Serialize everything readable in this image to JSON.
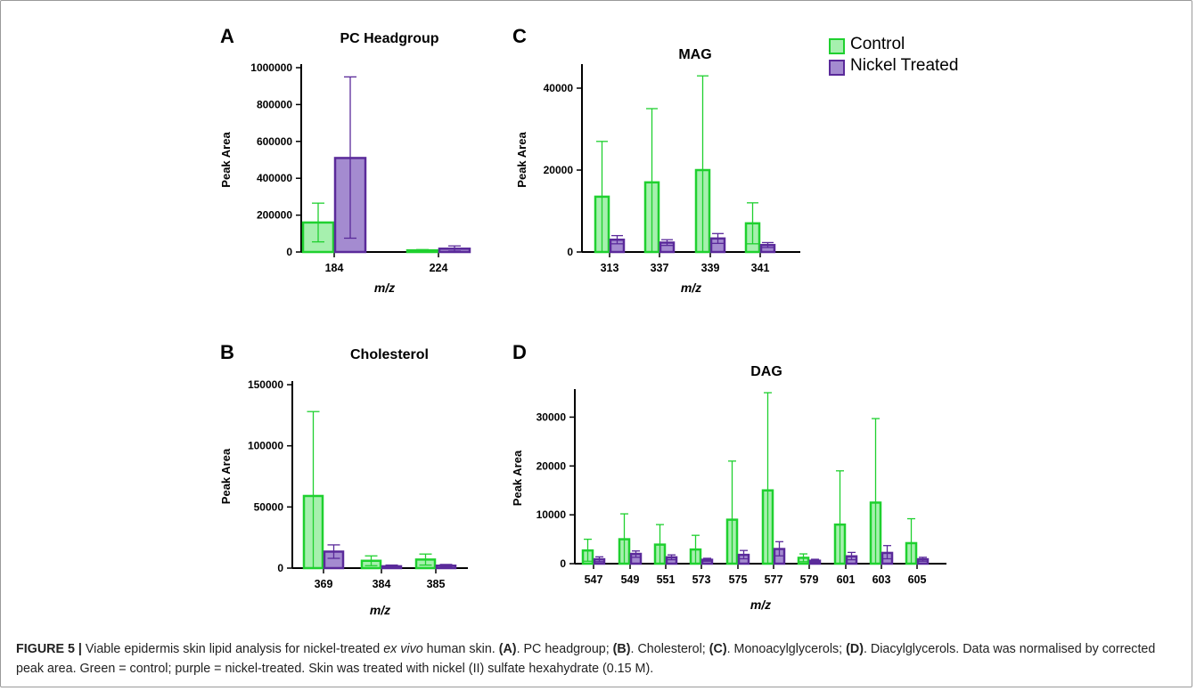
{
  "colors": {
    "control_fill": "#a6f0ae",
    "control_stroke": "#1fd02f",
    "nickel_fill": "#a48bd0",
    "nickel_stroke": "#5a2a9a"
  },
  "legend": {
    "control": "Control",
    "nickel": "Nickel Treated"
  },
  "chart_data": [
    {
      "panel": "A",
      "type": "bar",
      "title": "PC Headgroup",
      "xlabel": "m/z",
      "ylabel": "Peak Area",
      "ylim": [
        0,
        1000000
      ],
      "yticks": [
        "0",
        "200000",
        "400000",
        "600000",
        "800000",
        "1000000"
      ],
      "categories": [
        "184",
        "224"
      ],
      "series": [
        {
          "name": "Control",
          "values": [
            160000,
            9000
          ],
          "error_upper": [
            265000,
            13000
          ],
          "error_lower": [
            55000,
            5000
          ]
        },
        {
          "name": "Nickel Treated",
          "values": [
            510000,
            18000
          ],
          "error_upper": [
            950000,
            33000
          ],
          "error_lower": [
            75000,
            5000
          ]
        }
      ]
    },
    {
      "panel": "B",
      "type": "bar",
      "title": "Cholesterol",
      "xlabel": "m/z",
      "ylabel": "Peak Area",
      "ylim": [
        0,
        150000
      ],
      "yticks": [
        "0",
        "50000",
        "100000",
        "150000"
      ],
      "categories": [
        "369",
        "384",
        "385"
      ],
      "series": [
        {
          "name": "Control",
          "values": [
            59000,
            6000,
            7000
          ],
          "error_upper": [
            128000,
            10000,
            11500
          ],
          "error_lower": [
            0,
            2000,
            2500
          ]
        },
        {
          "name": "Nickel Treated",
          "values": [
            13500,
            1500,
            2000
          ],
          "error_upper": [
            19000,
            2500,
            3000
          ],
          "error_lower": [
            8000,
            500,
            1000
          ]
        }
      ]
    },
    {
      "panel": "C",
      "type": "bar",
      "title": "MAG",
      "xlabel": "m/z",
      "ylabel": "Peak Area",
      "ylim": [
        0,
        45000
      ],
      "yticks": [
        "0",
        "20000",
        "40000"
      ],
      "categories": [
        "313",
        "337",
        "339",
        "341"
      ],
      "series": [
        {
          "name": "Control",
          "values": [
            13500,
            17000,
            20000,
            7000
          ],
          "error_upper": [
            27000,
            35000,
            43000,
            12000
          ],
          "error_lower": [
            0,
            0,
            0,
            2000
          ]
        },
        {
          "name": "Nickel Treated",
          "values": [
            3000,
            2300,
            3300,
            1700
          ],
          "error_upper": [
            4000,
            3000,
            4500,
            2300
          ],
          "error_lower": [
            2000,
            1600,
            2100,
            1100
          ]
        }
      ]
    },
    {
      "panel": "D",
      "type": "bar",
      "title": "DAG",
      "xlabel": "m/z",
      "ylabel": "Peak Area",
      "ylim": [
        0,
        35000
      ],
      "yticks": [
        "0",
        "10000",
        "20000",
        "30000"
      ],
      "categories": [
        "547",
        "549",
        "551",
        "573",
        "575",
        "577",
        "579",
        "601",
        "603",
        "605"
      ],
      "series": [
        {
          "name": "Control",
          "values": [
            2700,
            5000,
            3900,
            2900,
            9000,
            15000,
            1200,
            8000,
            12500,
            4200
          ],
          "error_upper": [
            5000,
            10200,
            8000,
            5800,
            21000,
            35000,
            2000,
            19000,
            29700,
            9200
          ],
          "error_lower": [
            500,
            0,
            0,
            0,
            0,
            0,
            400,
            0,
            0,
            0
          ]
        },
        {
          "name": "Nickel Treated",
          "values": [
            900,
            2000,
            1300,
            800,
            1800,
            3000,
            600,
            1500,
            2200,
            900
          ],
          "error_upper": [
            1400,
            2600,
            1800,
            1100,
            2700,
            4500,
            900,
            2300,
            3700,
            1300
          ],
          "error_lower": [
            400,
            1300,
            800,
            500,
            1000,
            1600,
            300,
            800,
            1000,
            500
          ]
        }
      ]
    }
  ],
  "caption": {
    "figure_label": "FIGURE 5 |",
    "text_1": " Viable epidermis skin lipid analysis for nickel-treated ",
    "italic_1": "ex vivo",
    "text_2": " human skin. ",
    "ref_a": "(A)",
    "text_3": ". PC headgroup; ",
    "ref_b": "(B)",
    "text_4": ". Cholesterol; ",
    "ref_c": "(C)",
    "text_5": ". Monoacylglycerols; ",
    "ref_d": "(D)",
    "text_6": ". Diacylglycerols. Data was normalised by corrected peak area. Green = control; purple = nickel-treated. Skin was treated with nickel (II) sulfate hexahydrate (0.15 M)."
  }
}
